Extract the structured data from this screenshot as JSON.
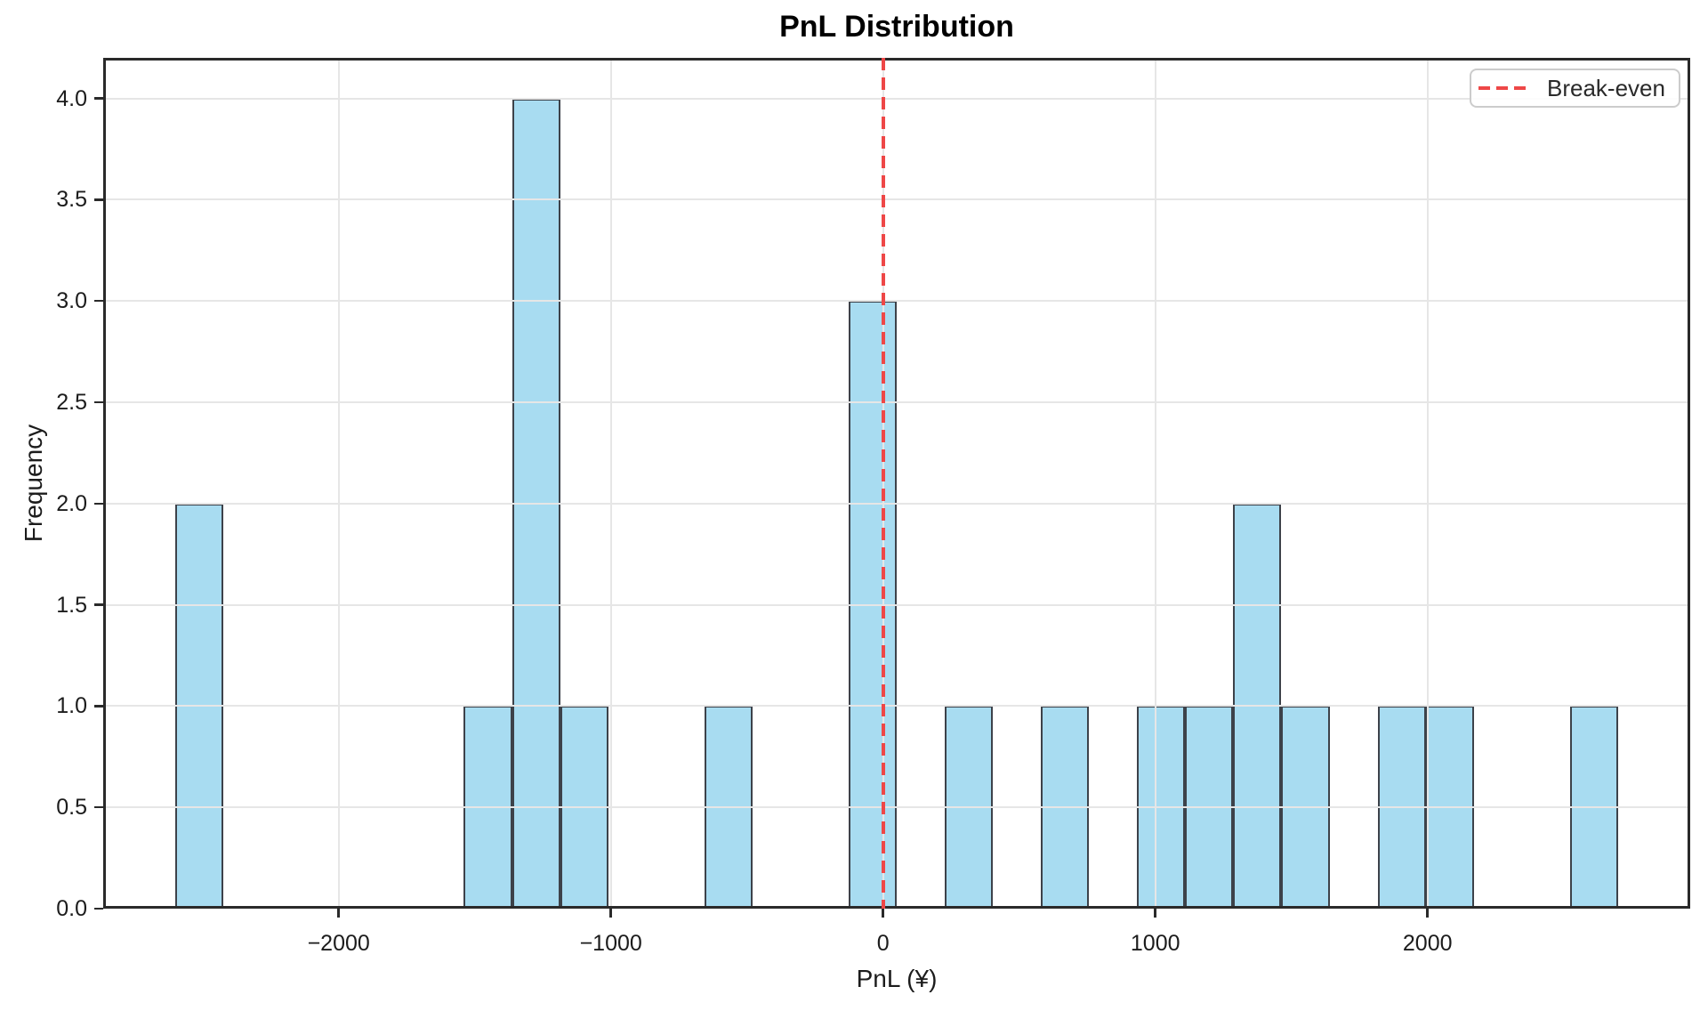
{
  "figure": {
    "title": "PnL Distribution"
  },
  "chart_data": {
    "type": "bar",
    "subtype": "histogram",
    "title": "PnL Distribution",
    "xlabel": "PnL (¥)",
    "ylabel": "Frequency",
    "xlim": [
      -2865,
      2965
    ],
    "ylim": [
      0,
      4.2
    ],
    "x_tick_values": [
      -2000,
      -1000,
      0,
      1000,
      2000
    ],
    "x_tick_labels": [
      "−2000",
      "−1000",
      "0",
      "1000",
      "2000"
    ],
    "y_tick_values": [
      0,
      0.5,
      1,
      1.5,
      2,
      2.5,
      3,
      3.5,
      4
    ],
    "y_tick_labels": [
      "0.0",
      "0.5",
      "1.0",
      "1.5",
      "2.0",
      "2.5",
      "3.0",
      "3.5",
      "4.0"
    ],
    "bins": {
      "start": -2600,
      "end": 2700,
      "count": 30
    },
    "counts": [
      2,
      0,
      0,
      0,
      0,
      0,
      1,
      4,
      1,
      0,
      0,
      1,
      0,
      0,
      3,
      0,
      1,
      0,
      1,
      0,
      1,
      1,
      2,
      1,
      0,
      1,
      1,
      0,
      0,
      1
    ],
    "break_even_x": 0,
    "grid": true,
    "grid_above_bars": true,
    "legend_position": "upper right",
    "legend": {
      "label": "Break-even"
    },
    "colors": {
      "bar_fill": "rgba(135,206,235,0.72)",
      "bar_edge": "#3d424a",
      "break_even": "#ee4747",
      "grid": "#e6e6e6",
      "spine": "#2a2a2a",
      "text": "#1c1c1c"
    }
  }
}
